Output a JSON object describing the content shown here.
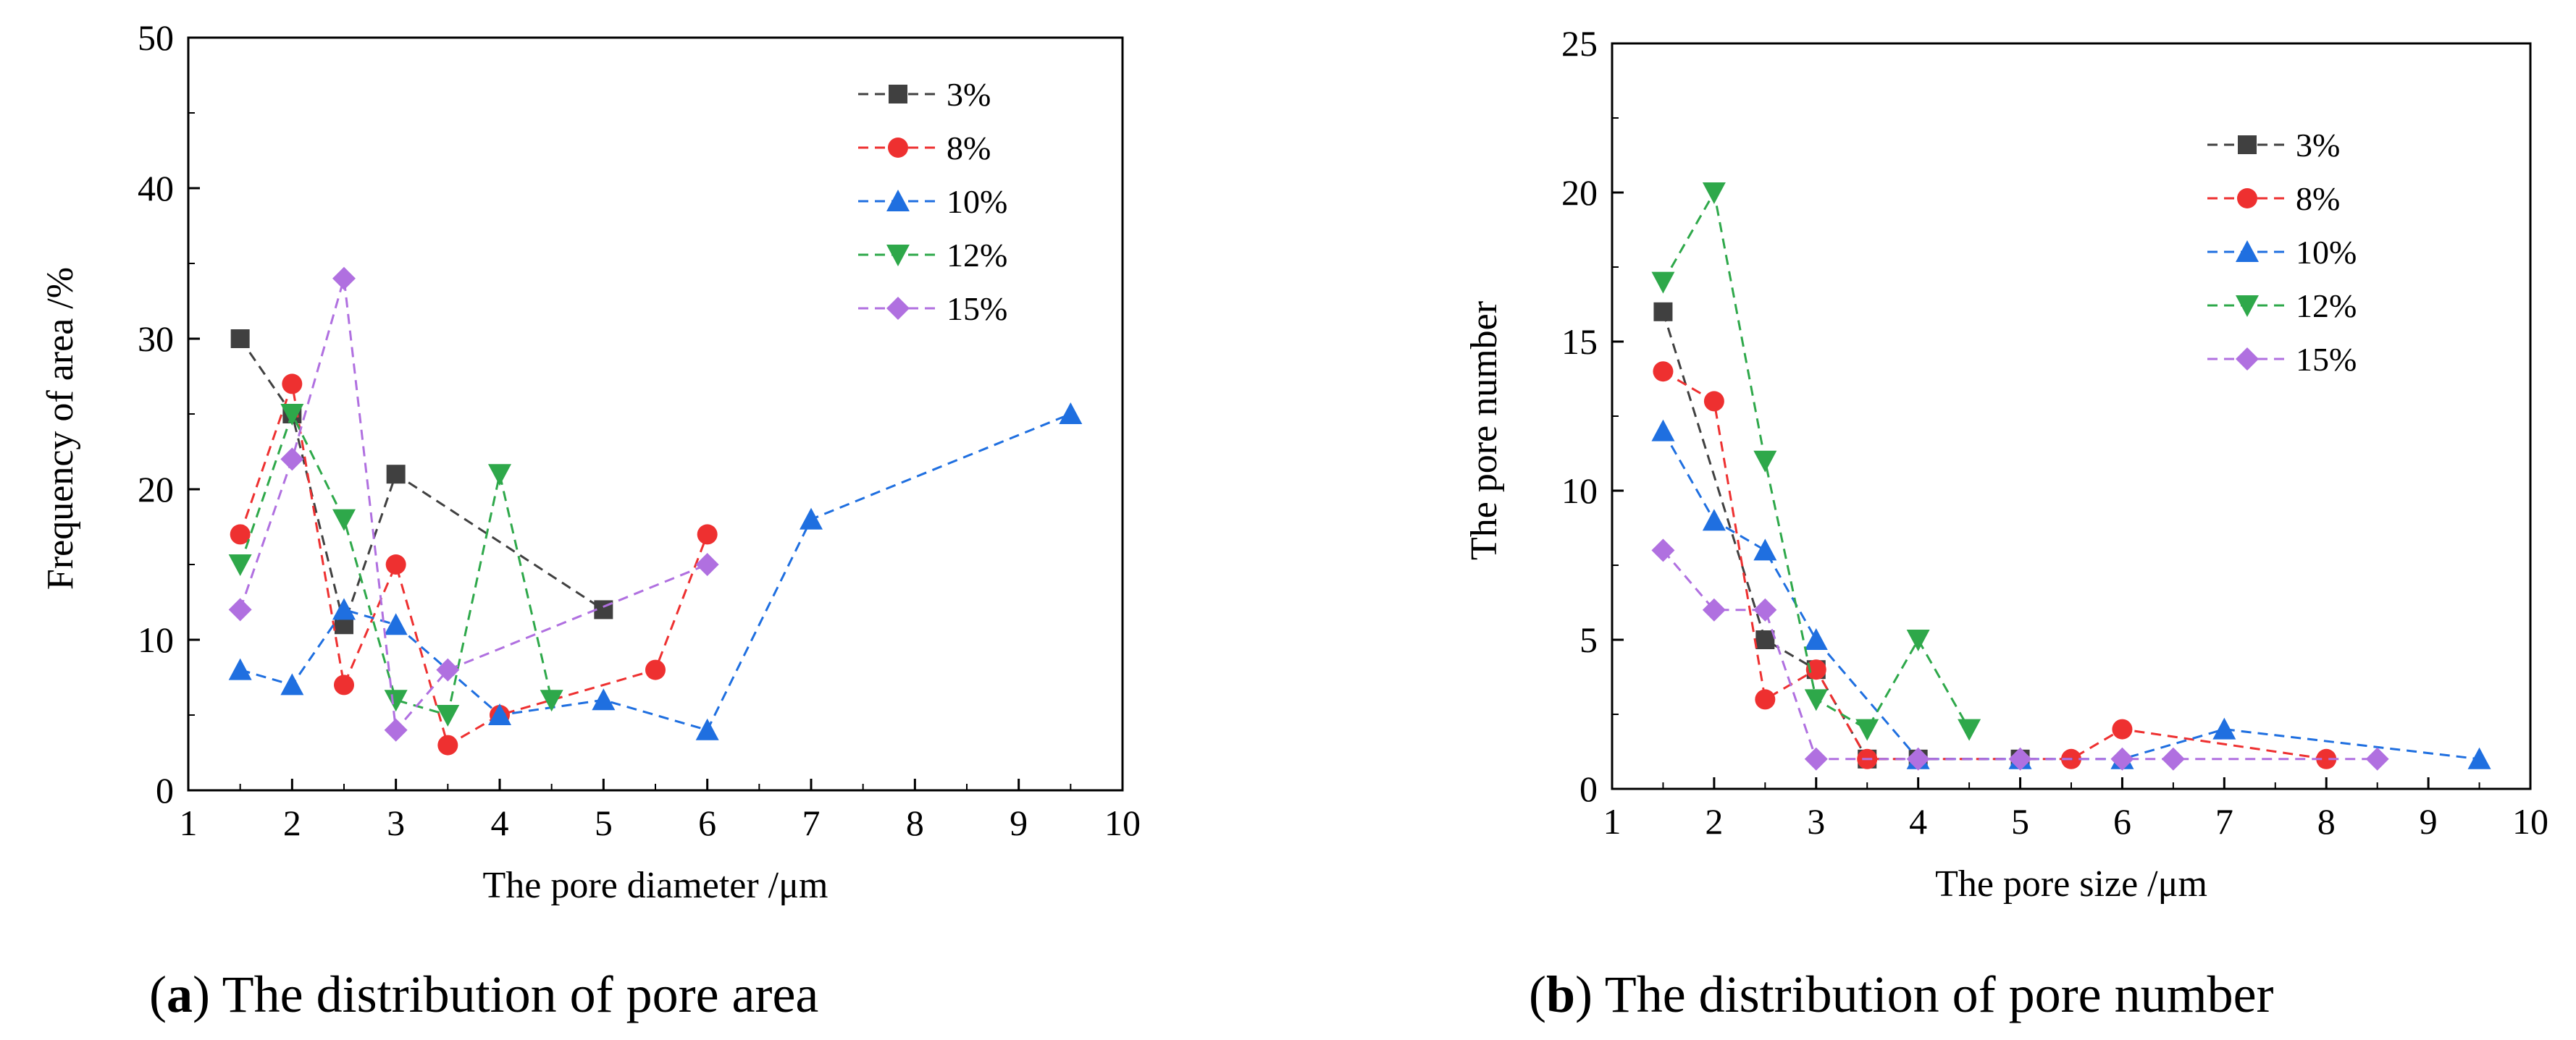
{
  "figure": {
    "panels": [
      {
        "label": "a",
        "caption": "The distribution of pore area"
      },
      {
        "label": "b",
        "caption": "The distribution of pore number"
      }
    ]
  },
  "chart_data": [
    {
      "type": "line",
      "title": "",
      "xlabel": "The pore diameter /μm",
      "ylabel": "Frequency of area  /%",
      "xlim": [
        1,
        10
      ],
      "ylim": [
        0,
        50
      ],
      "xticks": [
        1,
        2,
        3,
        4,
        5,
        6,
        7,
        8,
        9,
        10
      ],
      "yticks": [
        0,
        10,
        20,
        30,
        40,
        50
      ],
      "legend_position": "top-right",
      "series": [
        {
          "name": "3%",
          "color": "#404040",
          "marker": "square",
          "x": [
            1.5,
            2,
            2.5,
            3,
            5
          ],
          "y": [
            30,
            25,
            11,
            21,
            12
          ]
        },
        {
          "name": "8%",
          "color": "#ee3030",
          "marker": "circle",
          "x": [
            1.5,
            2,
            2.5,
            3,
            3.5,
            4,
            5.5,
            6
          ],
          "y": [
            17,
            27,
            7,
            15,
            3,
            5,
            8,
            17
          ]
        },
        {
          "name": "10%",
          "color": "#1f6fe0",
          "marker": "triangle-up",
          "x": [
            1.5,
            2,
            2.5,
            3,
            4,
            5,
            6,
            7,
            9.5
          ],
          "y": [
            8,
            7,
            12,
            11,
            5,
            6,
            4,
            18,
            25
          ]
        },
        {
          "name": "12%",
          "color": "#2ea84a",
          "marker": "triangle-down",
          "x": [
            1.5,
            2,
            2.5,
            3,
            3.5,
            4,
            4.5
          ],
          "y": [
            15,
            25,
            18,
            6,
            5,
            21,
            6
          ]
        },
        {
          "name": "15%",
          "color": "#b070e0",
          "marker": "diamond",
          "x": [
            1.5,
            2,
            2.5,
            3,
            3.5,
            6
          ],
          "y": [
            12,
            22,
            34,
            4,
            8,
            15
          ]
        }
      ]
    },
    {
      "type": "line",
      "title": "",
      "xlabel": "The pore size /μm",
      "ylabel": "The pore number",
      "xlim": [
        1,
        10
      ],
      "ylim": [
        0,
        25
      ],
      "xticks": [
        1,
        2,
        3,
        4,
        5,
        6,
        7,
        8,
        9,
        10
      ],
      "yticks": [
        0,
        5,
        10,
        15,
        20,
        25
      ],
      "legend_position": "top-right",
      "series": [
        {
          "name": "3%",
          "color": "#404040",
          "marker": "square",
          "x": [
            1.5,
            2.5,
            3,
            3.5,
            4,
            5
          ],
          "y": [
            16,
            5,
            4,
            1,
            1,
            1
          ]
        },
        {
          "name": "8%",
          "color": "#ee3030",
          "marker": "circle",
          "x": [
            1.5,
            2,
            2.5,
            3,
            3.5,
            5.5,
            6,
            8
          ],
          "y": [
            14,
            13,
            3,
            4,
            1,
            1,
            2,
            1
          ]
        },
        {
          "name": "10%",
          "color": "#1f6fe0",
          "marker": "triangle-up",
          "x": [
            1.5,
            2,
            2.5,
            3,
            4,
            5,
            6,
            7,
            9.5
          ],
          "y": [
            12,
            9,
            8,
            5,
            1,
            1,
            1,
            2,
            1
          ]
        },
        {
          "name": "12%",
          "color": "#2ea84a",
          "marker": "triangle-down",
          "x": [
            1.5,
            2,
            2.5,
            3,
            3.5,
            4,
            4.5
          ],
          "y": [
            17,
            20,
            11,
            3,
            2,
            5,
            2
          ]
        },
        {
          "name": "15%",
          "color": "#b070e0",
          "marker": "diamond",
          "x": [
            1.5,
            2,
            2.5,
            3,
            4,
            5,
            6,
            6.5,
            8.5
          ],
          "y": [
            8,
            6,
            6,
            1,
            1,
            1,
            1,
            1,
            1
          ]
        }
      ]
    }
  ]
}
